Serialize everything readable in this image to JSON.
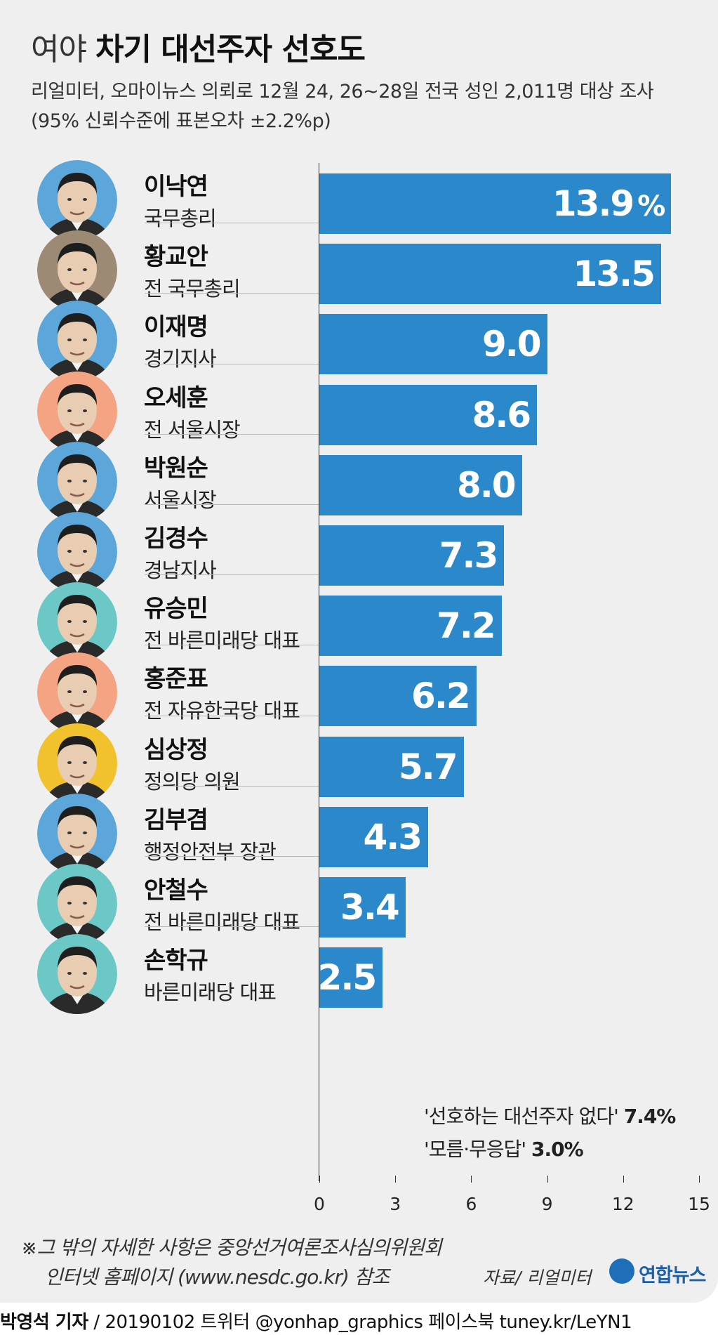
{
  "header": {
    "title_light": "여야",
    "title_bold": "차기 대선주자 선호도",
    "subtitle1": "리얼미터, 오마이뉴스 의뢰로 12월 24, 26~28일 전국 성인 2,011명 대상 조사",
    "subtitle2": "(95% 신뢰수준에 표본오차 ±2.2%p)"
  },
  "chart_data": {
    "type": "bar",
    "orientation": "horizontal",
    "unit": "%",
    "categories": [
      "이낙연",
      "황교안",
      "이재명",
      "오세훈",
      "박원순",
      "김경수",
      "유승민",
      "홍준표",
      "심상정",
      "김부겸",
      "안철수",
      "손학규"
    ],
    "roles": [
      "국무총리",
      "전 국무총리",
      "경기지사",
      "전 서울시장",
      "서울시장",
      "경남지사",
      "전 바른미래당 대표",
      "전 자유한국당 대표",
      "정의당 의원",
      "행정안전부 장관",
      "전 바른미래당 대표",
      "바른미래당 대표"
    ],
    "values": [
      13.9,
      13.5,
      9.0,
      8.6,
      8.0,
      7.3,
      7.2,
      6.2,
      5.7,
      4.3,
      3.4,
      2.5
    ],
    "value_labels": [
      "13.9",
      "13.5",
      "9.0",
      "8.6",
      "8.0",
      "7.3",
      "7.2",
      "6.2",
      "5.7",
      "4.3",
      "3.4",
      "2.5"
    ],
    "first_label_unit": "%",
    "avatar_colors": [
      "#5da6d9",
      "#9c8a74",
      "#5da6d9",
      "#f4a383",
      "#5da6d9",
      "#5da6d9",
      "#6cc8c6",
      "#f4a383",
      "#f2c12e",
      "#5da6d9",
      "#6cc8c6",
      "#6cc8c6"
    ],
    "bar_color": "#2b88cb",
    "xlim": [
      0,
      15
    ],
    "xticks": [
      0,
      3,
      6,
      9,
      12,
      15
    ],
    "xtick_labels": [
      "0",
      "3",
      "6",
      "9",
      "12",
      "15"
    ],
    "notes": [
      {
        "text": "'선호하는 대선주자 없다'",
        "value": "7.4%"
      },
      {
        "text": "'모름·무응답'",
        "value": "3.0%"
      }
    ]
  },
  "footer": {
    "footnote1": "※그 밖의 자세한 사항은 중앙선거여론조사심의위원회",
    "footnote2": "인터넷 홈페이지 (www.nesdc.go.kr) 참조",
    "source": "자료/ 리얼미터",
    "logo_text": "연합뉴스",
    "credit_bold": "박영석 기자",
    "credit_rest": " / 20190102 트위터 @yonhap_graphics  페이스북 tuney.kr/LeYN1"
  },
  "theme": {
    "background": "#efefef",
    "accent": "#2b88cb"
  }
}
